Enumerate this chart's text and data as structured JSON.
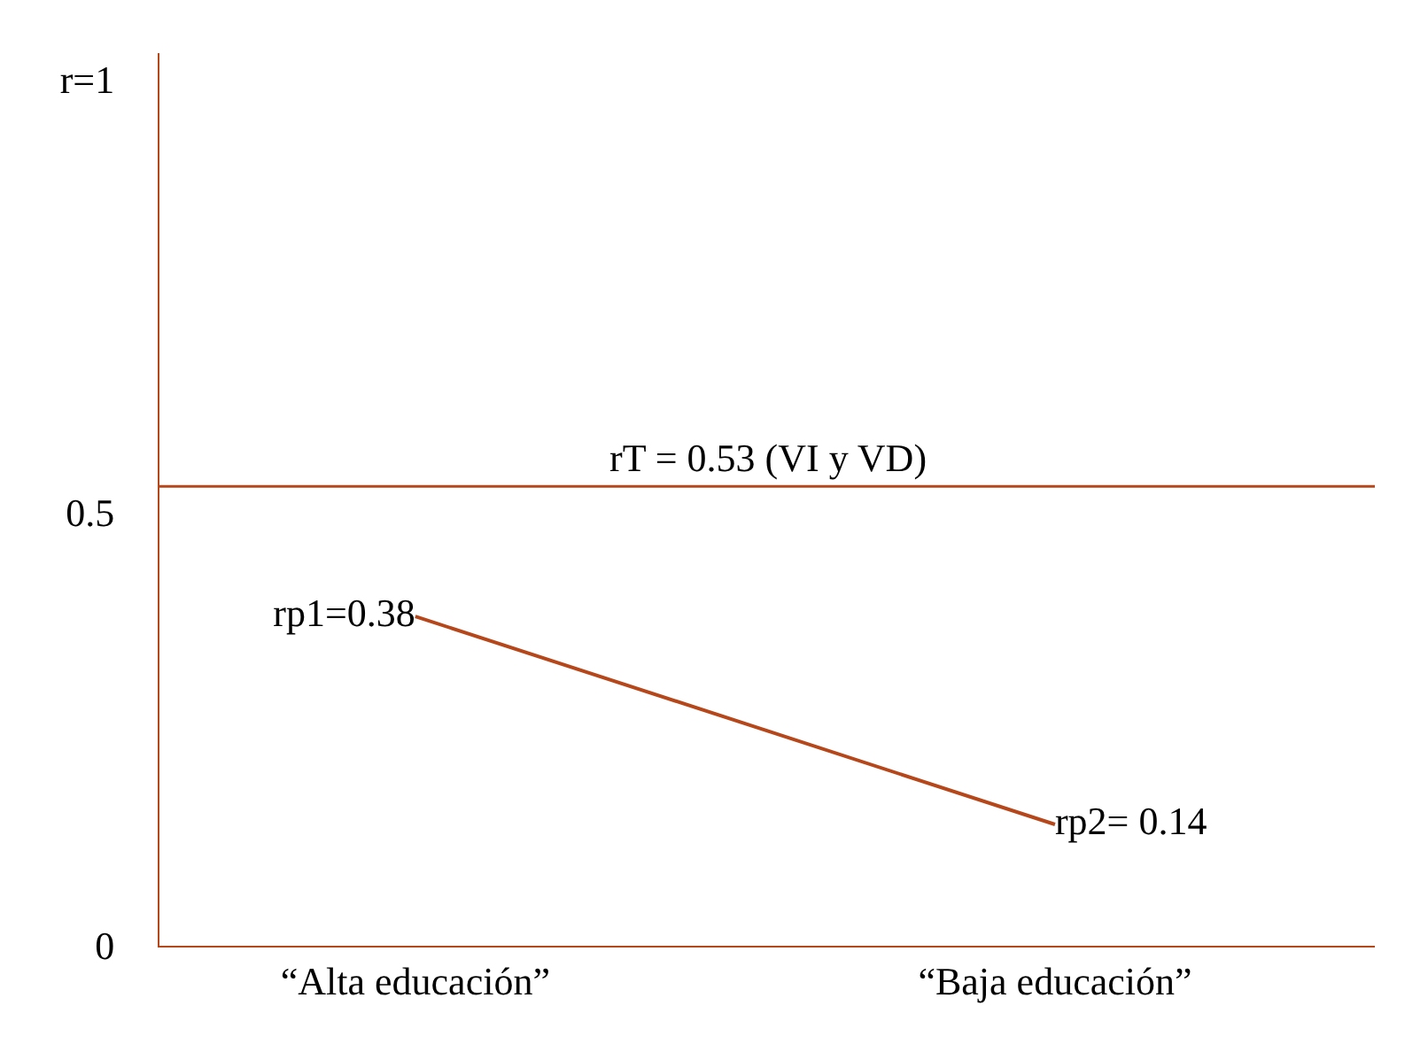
{
  "chart_data": {
    "type": "line",
    "categories": [
      "“Alta educación”",
      "“Baja educación”"
    ],
    "series": [
      {
        "color": "#b5471b",
        "values": [
          0.38,
          0.14
        ],
        "value_labels": [
          "rp1=0.38",
          "rp2= 0.14"
        ]
      }
    ],
    "ylim": [
      0,
      1.03
    ],
    "yticks": [
      {
        "value": 0,
        "label": "0"
      },
      0.5,
      {
        "value": 1,
        "label": "r=1"
      }
    ],
    "ref_lines": [
      {
        "axis": "y",
        "value": 0.53,
        "label": "rT = 0.53 (VI y VD)",
        "color": "#b5471b"
      }
    ],
    "marker": "none",
    "line_style": "solid"
  }
}
